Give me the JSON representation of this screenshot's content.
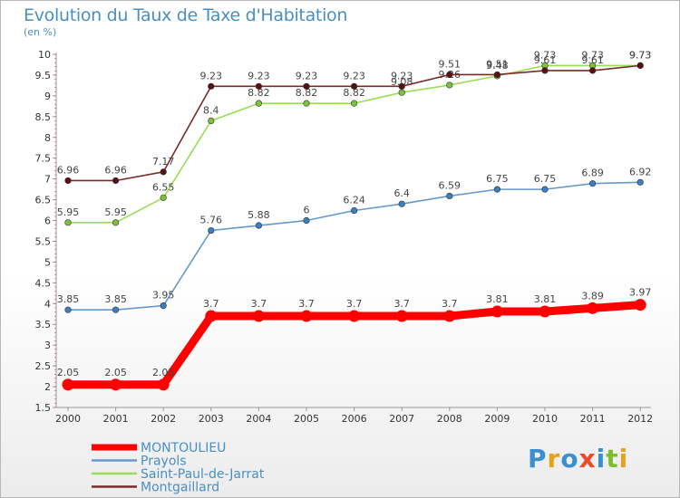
{
  "header": {
    "title": "Evolution du Taux de Taxe d'Habitation",
    "unit": "(en %)"
  },
  "logo": {
    "text": "Proxiti",
    "letters": [
      {
        "ch": "P",
        "color": "#3b8fd0"
      },
      {
        "ch": "r",
        "color": "#e8a21a"
      },
      {
        "ch": "o",
        "color": "#3b8fd0"
      },
      {
        "ch": "x",
        "color": "#e84a2a"
      },
      {
        "ch": "i",
        "color": "#3b8fd0"
      },
      {
        "ch": "t",
        "color": "#7cbf2a"
      },
      {
        "ch": "i",
        "color": "#e8a21a"
      }
    ]
  },
  "chart_data": {
    "type": "line",
    "title": "Evolution du Taux de Taxe d'Habitation",
    "ylabel": "(en %)",
    "xlabel": "",
    "x": [
      "2000",
      "2001",
      "2002",
      "2003",
      "2004",
      "2005",
      "2006",
      "2007",
      "2008",
      "2009",
      "2010",
      "2011",
      "2012"
    ],
    "ylim": [
      1.5,
      10
    ],
    "yticks": [
      "1.5",
      "2",
      "2.5",
      "3",
      "3.5",
      "4",
      "4.5",
      "5",
      "5.5",
      "6",
      "6.5",
      "7",
      "7.5",
      "8",
      "8.5",
      "9",
      "9.5",
      "10"
    ],
    "grid": false,
    "legend_position": "bottom-left",
    "series": [
      {
        "name": "MONTOULIEU",
        "color": "#ff0000",
        "emphasis": true,
        "values": [
          2.05,
          2.05,
          2.05,
          3.7,
          3.7,
          3.7,
          3.7,
          3.7,
          3.7,
          3.81,
          3.81,
          3.89,
          3.97
        ],
        "labels": [
          "2.05",
          "2.05",
          "2.05",
          "3.7",
          "3.7",
          "3.7",
          "3.7",
          "3.7",
          "3.7",
          "3.81",
          "3.81",
          "3.89",
          "3.97"
        ]
      },
      {
        "name": "Prayols",
        "color": "#6699cc",
        "marker": "#3a7fc0",
        "emphasis": false,
        "values": [
          3.85,
          3.85,
          3.95,
          5.76,
          5.88,
          6,
          6.24,
          6.4,
          6.59,
          6.75,
          6.75,
          6.89,
          6.92
        ],
        "labels": [
          "3.85",
          "3.85",
          "3.95",
          "5.76",
          "5.88",
          "6",
          "6.24",
          "6.4",
          "6.59",
          "6.75",
          "6.75",
          "6.89",
          "6.92"
        ]
      },
      {
        "name": "Saint-Paul-de-Jarrat",
        "color": "#99dd55",
        "marker": "#7cc23a",
        "emphasis": false,
        "values": [
          5.95,
          5.95,
          6.55,
          8.4,
          8.82,
          8.82,
          8.82,
          9.08,
          9.26,
          9.48,
          9.73,
          9.73,
          9.73
        ],
        "labels": [
          "5.95",
          "5.95",
          "6.55",
          "8.4",
          "8.82",
          "8.82",
          "8.82",
          "9.08",
          "9.26",
          "9.48",
          "9.73",
          "9.73",
          "9.73"
        ]
      },
      {
        "name": "Montgaillard",
        "color": "#7a2a2a",
        "marker": "#5a1010",
        "emphasis": false,
        "values": [
          6.96,
          6.96,
          7.17,
          9.23,
          9.23,
          9.23,
          9.23,
          9.23,
          9.51,
          9.51,
          9.61,
          9.61,
          9.73
        ],
        "labels": [
          "6.96",
          "6.96",
          "7.17",
          "9.23",
          "9.23",
          "9.23",
          "9.23",
          "9.23",
          "9.51",
          "9.51",
          "9.61",
          "9.61",
          "9.73"
        ]
      }
    ]
  }
}
